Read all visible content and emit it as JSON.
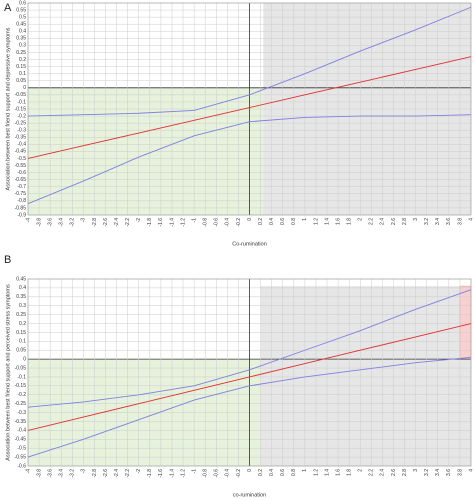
{
  "chart_data": [
    {
      "type": "line",
      "label": "A",
      "xlabel": "Co-rumination",
      "ylabel": "Association between best friend support and depressive symptoms",
      "x": [
        -4,
        -3,
        -2,
        -1,
        0,
        1,
        2,
        3,
        4
      ],
      "series": [
        {
          "color": "#e03030",
          "values": [
            -0.5,
            -0.41,
            -0.32,
            -0.23,
            -0.14,
            -0.05,
            0.04,
            0.13,
            0.22
          ]
        },
        {
          "color": "#8080e0",
          "values": [
            -0.2,
            -0.19,
            -0.18,
            -0.16,
            -0.05,
            0.1,
            0.26,
            0.41,
            0.57
          ]
        },
        {
          "color": "#8080e0",
          "values": [
            -0.82,
            -0.66,
            -0.49,
            -0.34,
            -0.24,
            -0.21,
            -0.2,
            -0.2,
            -0.19
          ]
        }
      ],
      "regions": [
        {
          "x": [
            -4,
            0.25
          ],
          "y": [
            -0.9,
            0
          ],
          "color": "#e6f2dc"
        },
        {
          "x": [
            0.25,
            4
          ],
          "y": [
            -0.9,
            0.6
          ],
          "color": "#e6e6e6"
        }
      ],
      "xlim": [
        -4,
        4
      ],
      "ylim": [
        -0.9,
        0.6
      ],
      "grid": true,
      "xticks": [
        -4,
        -3.8,
        -3.6,
        -3.4,
        -3.2,
        -3,
        -2.8,
        -2.6,
        -2.4,
        -2.2,
        -2,
        -1.8,
        -1.6,
        -1.4,
        -1.2,
        -1,
        -0.8,
        -0.6,
        -0.4,
        -0.2,
        0,
        0.2,
        0.4,
        0.6,
        0.8,
        1,
        1.2,
        1.4,
        1.6,
        1.8,
        2,
        2.2,
        2.4,
        2.6,
        2.8,
        3,
        3.2,
        3.4,
        3.6,
        3.8,
        4
      ],
      "yticks": [
        -0.9,
        -0.85,
        -0.8,
        -0.75,
        -0.7,
        -0.65,
        -0.6,
        -0.55,
        -0.5,
        -0.45,
        -0.4,
        -0.35,
        -0.3,
        -0.25,
        -0.2,
        -0.15,
        -0.1,
        -0.05,
        0,
        0.05,
        0.1,
        0.15,
        0.2,
        0.25,
        0.3,
        0.35,
        0.4,
        0.45,
        0.5,
        0.55,
        0.6
      ]
    },
    {
      "type": "line",
      "label": "B",
      "xlabel": "co-rumination",
      "ylabel": "Association between best friend support and perceived stress symptoms",
      "x": [
        -4,
        -3,
        -2,
        -1,
        0,
        1,
        2,
        3,
        4
      ],
      "series": [
        {
          "color": "#e03030",
          "values": [
            -0.4,
            -0.325,
            -0.25,
            -0.175,
            -0.1,
            -0.025,
            0.05,
            0.125,
            0.2
          ]
        },
        {
          "color": "#8080e0",
          "values": [
            -0.27,
            -0.24,
            -0.2,
            -0.15,
            -0.06,
            0.05,
            0.16,
            0.28,
            0.39
          ]
        },
        {
          "color": "#8080e0",
          "values": [
            -0.55,
            -0.45,
            -0.34,
            -0.23,
            -0.15,
            -0.1,
            -0.06,
            -0.02,
            0.01
          ]
        }
      ],
      "regions": [
        {
          "x": [
            -4,
            0.2
          ],
          "y": [
            -0.6,
            0
          ],
          "color": "#e6f2dc"
        },
        {
          "x": [
            0.2,
            4
          ],
          "y": [
            -0.6,
            0.41
          ],
          "color": "#e6e6e6"
        },
        {
          "x": [
            3.8,
            4
          ],
          "y": [
            0,
            0.41
          ],
          "color": "#f8d0d0"
        }
      ],
      "xlim": [
        -4,
        4
      ],
      "ylim": [
        -0.6,
        0.45
      ],
      "grid": true,
      "xticks": [
        -4,
        -3.8,
        -3.6,
        -3.4,
        -3.2,
        -3,
        -2.8,
        -2.6,
        -2.4,
        -2.2,
        -2,
        -1.8,
        -1.6,
        -1.4,
        -1.2,
        -1,
        -0.8,
        -0.6,
        -0.4,
        -0.2,
        0,
        0.2,
        0.4,
        0.6,
        0.8,
        1,
        1.2,
        1.4,
        1.6,
        1.8,
        2,
        2.2,
        2.4,
        2.6,
        2.8,
        3,
        3.2,
        3.4,
        3.6,
        3.8,
        4
      ],
      "yticks": [
        -0.6,
        -0.55,
        -0.5,
        -0.45,
        -0.4,
        -0.35,
        -0.3,
        -0.25,
        -0.2,
        -0.15,
        -0.1,
        -0.05,
        0,
        0.05,
        0.1,
        0.15,
        0.2,
        0.25,
        0.3,
        0.35,
        0.4,
        0.45
      ]
    }
  ]
}
